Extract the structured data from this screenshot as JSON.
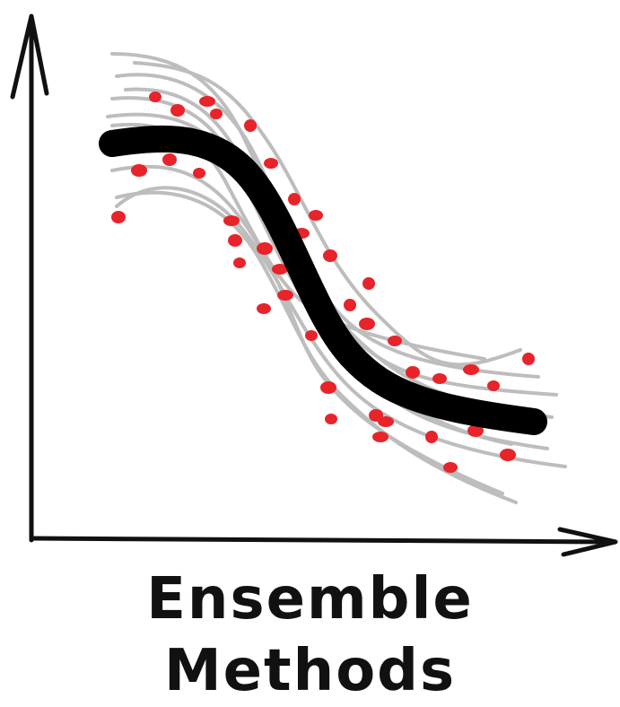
{
  "caption": "Ensemble Methods",
  "colors": {
    "background": "#ffffff",
    "axes": "#111111",
    "ensemble_member_curves": "#bdbdbd",
    "ensemble_mean_curve": "#000000",
    "data_points": "#e8232a"
  },
  "diagram": {
    "type": "ensemble-regression-sketch",
    "axes": "x-y with arrowheads",
    "member_curve_count": 10,
    "data_point_count": 45,
    "mean_curve": "thick black sigmoid-like decreasing curve"
  }
}
